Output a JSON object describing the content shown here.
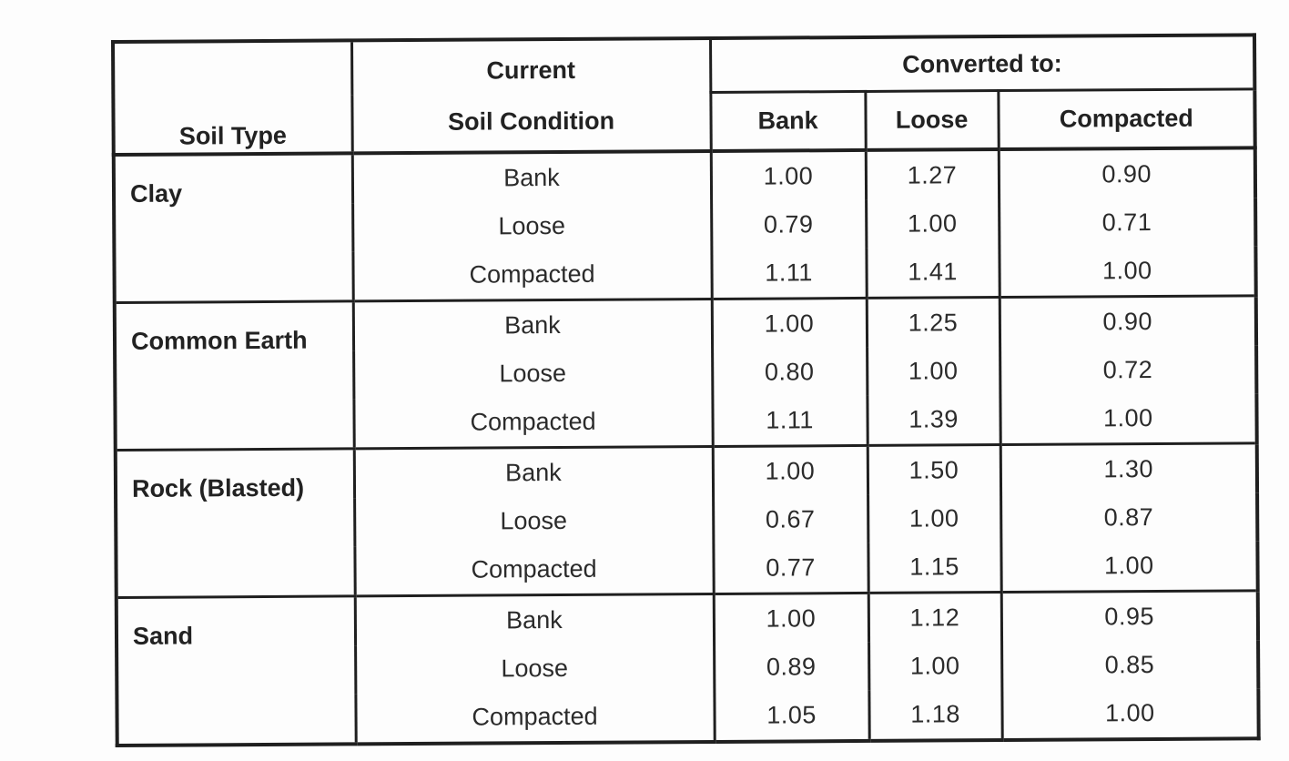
{
  "table": {
    "headers": {
      "soil_type": "Soil Type",
      "current_line1": "Current",
      "current_line2": "Soil Condition",
      "converted_to": "Converted to:",
      "bank": "Bank",
      "loose": "Loose",
      "compacted": "Compacted"
    },
    "groups": [
      {
        "soil": "Clay",
        "rows": [
          {
            "condition": "Bank",
            "bank": "1.00",
            "loose": "1.27",
            "compacted": "0.90"
          },
          {
            "condition": "Loose",
            "bank": "0.79",
            "loose": "1.00",
            "compacted": "0.71"
          },
          {
            "condition": "Compacted",
            "bank": "1.11",
            "loose": "1.41",
            "compacted": "1.00"
          }
        ]
      },
      {
        "soil": "Common Earth",
        "rows": [
          {
            "condition": "Bank",
            "bank": "1.00",
            "loose": "1.25",
            "compacted": "0.90"
          },
          {
            "condition": "Loose",
            "bank": "0.80",
            "loose": "1.00",
            "compacted": "0.72"
          },
          {
            "condition": "Compacted",
            "bank": "1.11",
            "loose": "1.39",
            "compacted": "1.00"
          }
        ]
      },
      {
        "soil": "Rock (Blasted)",
        "rows": [
          {
            "condition": "Bank",
            "bank": "1.00",
            "loose": "1.50",
            "compacted": "1.30"
          },
          {
            "condition": "Loose",
            "bank": "0.67",
            "loose": "1.00",
            "compacted": "0.87"
          },
          {
            "condition": "Compacted",
            "bank": "0.77",
            "loose": "1.15",
            "compacted": "1.00"
          }
        ]
      },
      {
        "soil": "Sand",
        "rows": [
          {
            "condition": "Bank",
            "bank": "1.00",
            "loose": "1.12",
            "compacted": "0.95"
          },
          {
            "condition": "Loose",
            "bank": "0.89",
            "loose": "1.00",
            "compacted": "0.85"
          },
          {
            "condition": "Compacted",
            "bank": "1.05",
            "loose": "1.18",
            "compacted": "1.00"
          }
        ]
      }
    ]
  }
}
